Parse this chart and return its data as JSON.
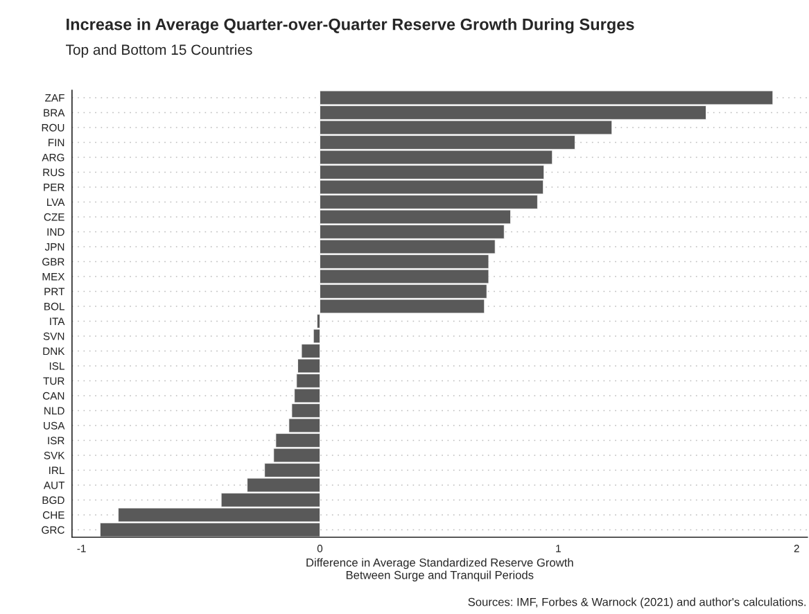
{
  "chart_data": {
    "type": "bar",
    "orientation": "horizontal",
    "title": "Increase in Average Quarter-over-Quarter Reserve Growth During Surges",
    "subtitle": "Top and Bottom 15 Countries",
    "xlabel": "Difference in Average Standardized Reserve Growth\nBetween Surge and Tranquil Periods",
    "annotations": [
      "Sources: IMF, Forbes & Warnock (2021) and author's calculations."
    ],
    "categories": [
      "ZAF",
      "BRA",
      "ROU",
      "FIN",
      "ARG",
      "RUS",
      "PER",
      "LVA",
      "CZE",
      "IND",
      "JPN",
      "GBR",
      "MEX",
      "PRT",
      "BOL",
      "ITA",
      "SVN",
      "DNK",
      "ISL",
      "TUR",
      "CAN",
      "NLD",
      "USA",
      "ISR",
      "SVK",
      "IRL",
      "AUT",
      "BGD",
      "CHE",
      "GRC"
    ],
    "values": [
      1.9,
      1.62,
      1.225,
      1.07,
      0.975,
      0.94,
      0.937,
      0.913,
      0.8,
      0.773,
      0.735,
      0.708,
      0.708,
      0.7,
      0.69,
      -0.012,
      -0.027,
      -0.077,
      -0.093,
      -0.098,
      -0.107,
      -0.118,
      -0.13,
      -0.185,
      -0.194,
      -0.232,
      -0.305,
      -0.414,
      -0.846,
      -0.922
    ],
    "color": "#595959",
    "xlim": [
      -1.04,
      2.045
    ],
    "xticks": [
      -1,
      0,
      1,
      2
    ],
    "grid": "y",
    "legend": false
  }
}
